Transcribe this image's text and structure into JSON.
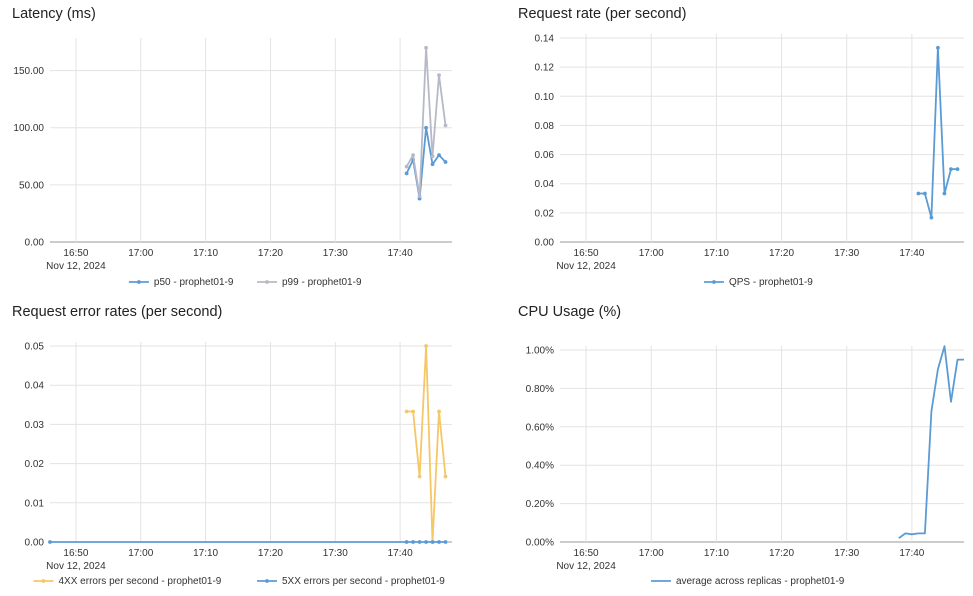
{
  "chart_data": [
    {
      "type": "line",
      "title": "Latency (ms)",
      "x_ticks": [
        "16:50",
        "17:00",
        "17:10",
        "17:20",
        "17:30",
        "17:40"
      ],
      "x_date_label": "Nov 12, 2024",
      "x_range": [
        "16:46",
        "17:48"
      ],
      "ylim": [
        0,
        175
      ],
      "y_ticks": [
        0,
        50,
        100,
        150
      ],
      "y_tick_labels": [
        "0.00",
        "50.00",
        "100.00",
        "150.00"
      ],
      "grid": true,
      "legend_position": "bottom",
      "series": [
        {
          "name": "p50 - prophet01-9",
          "color": "#5b9bd5",
          "marker": true,
          "x": [
            "17:41",
            "17:42",
            "17:43",
            "17:44",
            "17:45",
            "17:46",
            "17:47"
          ],
          "values": [
            60,
            72,
            38,
            100,
            68,
            76,
            70
          ]
        },
        {
          "name": "p99 - prophet01-9",
          "color": "#b7b9c7",
          "marker": true,
          "x": [
            "17:41",
            "17:42",
            "17:43",
            "17:44",
            "17:45",
            "17:46",
            "17:47"
          ],
          "values": [
            66,
            76,
            40,
            170,
            75,
            146,
            102
          ]
        }
      ]
    },
    {
      "type": "line",
      "title": "Request rate (per second)",
      "x_ticks": [
        "16:50",
        "17:00",
        "17:10",
        "17:20",
        "17:30",
        "17:40"
      ],
      "x_date_label": "Nov 12, 2024",
      "x_range": [
        "16:46",
        "17:48"
      ],
      "ylim": [
        0,
        0.14
      ],
      "y_ticks": [
        0,
        0.02,
        0.04,
        0.06,
        0.08,
        0.1,
        0.12,
        0.14
      ],
      "y_tick_labels": [
        "0.00",
        "0.02",
        "0.04",
        "0.06",
        "0.08",
        "0.10",
        "0.12",
        "0.14"
      ],
      "grid": true,
      "legend_position": "bottom",
      "series": [
        {
          "name": "QPS - prophet01-9",
          "color": "#5b9bd5",
          "marker": true,
          "x": [
            "17:41",
            "17:42",
            "17:43",
            "17:44",
            "17:45",
            "17:46",
            "17:47"
          ],
          "values": [
            0.0333,
            0.0333,
            0.0167,
            0.1333,
            0.0333,
            0.05,
            0.05
          ]
        }
      ]
    },
    {
      "type": "line",
      "title": "Request error rates (per second)",
      "x_ticks": [
        "16:50",
        "17:00",
        "17:10",
        "17:20",
        "17:30",
        "17:40"
      ],
      "x_date_label": "Nov 12, 2024",
      "x_range": [
        "16:46",
        "17:48"
      ],
      "ylim": [
        0,
        0.05
      ],
      "y_ticks": [
        0,
        0.01,
        0.02,
        0.03,
        0.04,
        0.05
      ],
      "y_tick_labels": [
        "0.00",
        "0.01",
        "0.02",
        "0.03",
        "0.04",
        "0.05"
      ],
      "grid": true,
      "legend_position": "bottom",
      "series": [
        {
          "name": "4XX errors per second - prophet01-9",
          "color": "#f5c767",
          "marker": true,
          "x": [
            "17:41",
            "17:42",
            "17:43",
            "17:44",
            "17:45",
            "17:46",
            "17:47"
          ],
          "values": [
            0.0333,
            0.0333,
            0.0167,
            0.05,
            0,
            0.0333,
            0.0167
          ]
        },
        {
          "name": "5XX errors per second - prophet01-9",
          "color": "#5b9bd5",
          "marker": true,
          "x": [
            "16:46",
            "17:41",
            "17:42",
            "17:43",
            "17:44",
            "17:45",
            "17:46",
            "17:47"
          ],
          "values": [
            0,
            0,
            0,
            0,
            0,
            0,
            0,
            0
          ]
        }
      ]
    },
    {
      "type": "line",
      "title": "CPU Usage (%)",
      "x_ticks": [
        "16:50",
        "17:00",
        "17:10",
        "17:20",
        "17:30",
        "17:40"
      ],
      "x_date_label": "Nov 12, 2024",
      "x_range": [
        "16:46",
        "17:48"
      ],
      "ylim": [
        0,
        1.0
      ],
      "y_ticks": [
        0,
        0.2,
        0.4,
        0.6,
        0.8,
        1.0
      ],
      "y_tick_labels": [
        "0.00%",
        "0.20%",
        "0.40%",
        "0.60%",
        "0.80%",
        "1.00%"
      ],
      "grid": true,
      "legend_position": "bottom",
      "series": [
        {
          "name": "average across replicas - prophet01-9",
          "color": "#5b9bd5",
          "marker": false,
          "x": [
            "17:38",
            "17:39",
            "17:40",
            "17:41",
            "17:42",
            "17:43",
            "17:44",
            "17:45",
            "17:46",
            "17:47",
            "17:48"
          ],
          "values": [
            0.02,
            0.045,
            0.04,
            0.045,
            0.045,
            0.68,
            0.9,
            1.02,
            0.73,
            0.95,
            0.95
          ]
        }
      ]
    }
  ]
}
